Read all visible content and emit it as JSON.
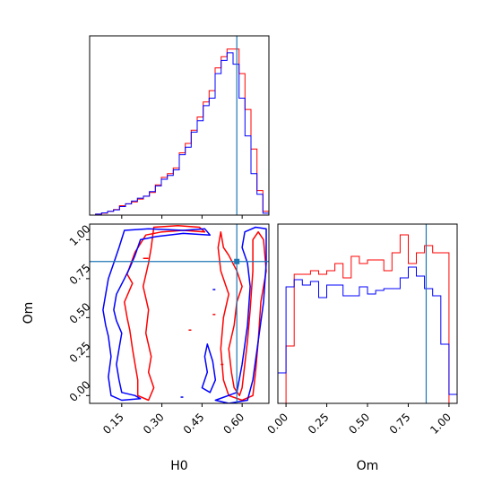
{
  "chart_data": {
    "type": "corner",
    "parameters": [
      "H0",
      "Om"
    ],
    "truth": {
      "H0": 0.58,
      "Om": 0.86
    },
    "colors": {
      "red": "#ff0000",
      "blue": "#0000ff",
      "truth": "#1f77b4"
    },
    "grid": false,
    "h0_marginal": {
      "xlim": [
        0.03,
        0.7
      ],
      "edges": [
        0.03,
        0.0523,
        0.0747,
        0.097,
        0.1193,
        0.1417,
        0.164,
        0.1863,
        0.2087,
        0.231,
        0.2533,
        0.2757,
        0.298,
        0.3203,
        0.3427,
        0.365,
        0.3873,
        0.4097,
        0.432,
        0.4543,
        0.4767,
        0.499,
        0.5213,
        0.5437,
        0.566,
        0.5883,
        0.6107,
        0.633,
        0.6553,
        0.6777,
        0.7
      ],
      "red": [
        0,
        0.005,
        0.01,
        0.02,
        0.03,
        0.05,
        0.06,
        0.07,
        0.085,
        0.1,
        0.12,
        0.16,
        0.2,
        0.22,
        0.25,
        0.33,
        0.38,
        0.45,
        0.52,
        0.6,
        0.66,
        0.78,
        0.84,
        0.88,
        0.88,
        0.75,
        0.56,
        0.35,
        0.13,
        0.02
      ],
      "blue": [
        0,
        0.005,
        0.012,
        0.02,
        0.028,
        0.045,
        0.06,
        0.075,
        0.09,
        0.1,
        0.125,
        0.155,
        0.19,
        0.21,
        0.24,
        0.32,
        0.36,
        0.44,
        0.5,
        0.58,
        0.62,
        0.75,
        0.82,
        0.86,
        0.8,
        0.62,
        0.42,
        0.22,
        0.11,
        0.01
      ]
    },
    "om_marginal": {
      "xlim": [
        -0.05,
        1.05
      ],
      "xticks": [
        "0.00",
        "0.25",
        "0.50",
        "0.75",
        "1.00"
      ],
      "edges": [
        -0.05,
        0.0,
        0.05,
        0.1,
        0.15,
        0.2,
        0.25,
        0.3,
        0.35,
        0.4,
        0.45,
        0.5,
        0.55,
        0.6,
        0.65,
        0.7,
        0.75,
        0.8,
        0.85,
        0.9,
        0.95,
        1.0,
        1.05
      ],
      "red": [
        0,
        0.32,
        0.72,
        0.72,
        0.74,
        0.72,
        0.74,
        0.78,
        0.7,
        0.82,
        0.78,
        0.8,
        0.8,
        0.74,
        0.84,
        0.94,
        0.78,
        0.84,
        0.88,
        0.84,
        0.84,
        0
      ],
      "blue": [
        0.17,
        0.65,
        0.69,
        0.66,
        0.68,
        0.59,
        0.66,
        0.66,
        0.6,
        0.6,
        0.65,
        0.61,
        0.63,
        0.64,
        0.64,
        0.7,
        0.76,
        0.71,
        0.64,
        0.6,
        0.33,
        0.05
      ]
    },
    "joint": {
      "xlabel": "H0",
      "ylabel": "Om",
      "xlim": [
        0.03,
        0.7
      ],
      "ylim": [
        -0.05,
        1.1
      ],
      "xticks": [
        "0.15",
        "0.30",
        "0.45",
        "0.60"
      ],
      "yticks": [
        "0.00",
        "0.25",
        "0.50",
        "0.75",
        "1.00"
      ],
      "contours": [
        {
          "color": "red",
          "points": [
            [
              0.27,
              1.08
            ],
            [
              0.36,
              1.09
            ],
            [
              0.44,
              1.08
            ],
            [
              0.46,
              1.05
            ],
            [
              0.38,
              1.06
            ],
            [
              0.3,
              1.05
            ],
            [
              0.24,
              1.03
            ],
            [
              0.2,
              0.92
            ],
            [
              0.17,
              0.78
            ],
            [
              0.19,
              0.72
            ],
            [
              0.16,
              0.6
            ],
            [
              0.17,
              0.5
            ],
            [
              0.18,
              0.42
            ],
            [
              0.19,
              0.3
            ],
            [
              0.2,
              0.2
            ],
            [
              0.21,
              0.1
            ],
            [
              0.21,
              0.0
            ],
            [
              0.25,
              -0.03
            ],
            [
              0.27,
              0.05
            ],
            [
              0.25,
              0.15
            ],
            [
              0.26,
              0.25
            ],
            [
              0.24,
              0.4
            ],
            [
              0.25,
              0.55
            ],
            [
              0.23,
              0.7
            ],
            [
              0.25,
              0.85
            ],
            [
              0.26,
              0.95
            ],
            [
              0.27,
              1.08
            ]
          ]
        },
        {
          "color": "red",
          "points": [
            [
              0.52,
              1.05
            ],
            [
              0.53,
              0.95
            ],
            [
              0.55,
              0.9
            ],
            [
              0.58,
              0.8
            ],
            [
              0.6,
              0.7
            ],
            [
              0.58,
              0.6
            ],
            [
              0.57,
              0.45
            ],
            [
              0.55,
              0.3
            ],
            [
              0.56,
              0.15
            ],
            [
              0.57,
              0.05
            ],
            [
              0.59,
              0.0
            ],
            [
              0.6,
              0.05
            ],
            [
              0.61,
              0.2
            ],
            [
              0.62,
              0.35
            ],
            [
              0.63,
              0.55
            ],
            [
              0.64,
              0.8
            ],
            [
              0.64,
              1.0
            ],
            [
              0.66,
              1.05
            ],
            [
              0.68,
              1.0
            ],
            [
              0.69,
              0.8
            ],
            [
              0.67,
              0.6
            ],
            [
              0.66,
              0.35
            ],
            [
              0.65,
              0.15
            ],
            [
              0.64,
              0.0
            ],
            [
              0.6,
              -0.03
            ],
            [
              0.55,
              0.0
            ],
            [
              0.53,
              0.1
            ],
            [
              0.52,
              0.3
            ],
            [
              0.53,
              0.5
            ],
            [
              0.55,
              0.65
            ],
            [
              0.52,
              0.8
            ],
            [
              0.51,
              0.95
            ],
            [
              0.52,
              1.05
            ]
          ]
        },
        {
          "color": "blue",
          "points": [
            [
              0.16,
              1.06
            ],
            [
              0.25,
              1.07
            ],
            [
              0.38,
              1.06
            ],
            [
              0.46,
              1.07
            ],
            [
              0.48,
              1.03
            ],
            [
              0.38,
              1.04
            ],
            [
              0.28,
              1.02
            ],
            [
              0.22,
              1.0
            ],
            [
              0.2,
              0.9
            ],
            [
              0.18,
              0.82
            ],
            [
              0.16,
              0.75
            ],
            [
              0.13,
              0.65
            ],
            [
              0.12,
              0.55
            ],
            [
              0.13,
              0.48
            ],
            [
              0.15,
              0.4
            ],
            [
              0.14,
              0.3
            ],
            [
              0.13,
              0.2
            ],
            [
              0.14,
              0.1
            ],
            [
              0.15,
              0.02
            ],
            [
              0.2,
              0.0
            ],
            [
              0.22,
              -0.02
            ],
            [
              0.15,
              -0.03
            ],
            [
              0.11,
              0.0
            ],
            [
              0.1,
              0.12
            ],
            [
              0.11,
              0.25
            ],
            [
              0.1,
              0.38
            ],
            [
              0.09,
              0.45
            ],
            [
              0.08,
              0.55
            ],
            [
              0.09,
              0.65
            ],
            [
              0.1,
              0.75
            ],
            [
              0.12,
              0.85
            ],
            [
              0.14,
              0.95
            ],
            [
              0.16,
              1.06
            ]
          ]
        },
        {
          "color": "blue",
          "points": [
            [
              0.5,
              -0.03
            ],
            [
              0.58,
              0.02
            ],
            [
              0.6,
              0.2
            ],
            [
              0.62,
              0.45
            ],
            [
              0.63,
              0.7
            ],
            [
              0.62,
              0.85
            ],
            [
              0.6,
              0.95
            ],
            [
              0.61,
              1.05
            ],
            [
              0.65,
              1.08
            ],
            [
              0.69,
              1.07
            ],
            [
              0.69,
              0.85
            ],
            [
              0.68,
              0.6
            ],
            [
              0.66,
              0.35
            ],
            [
              0.64,
              0.1
            ],
            [
              0.62,
              -0.03
            ],
            [
              0.55,
              -0.05
            ],
            [
              0.5,
              -0.03
            ]
          ]
        },
        {
          "color": "blue",
          "points": [
            [
              0.47,
              0.33
            ],
            [
              0.49,
              0.22
            ],
            [
              0.5,
              0.1
            ],
            [
              0.48,
              0.02
            ],
            [
              0.45,
              0.05
            ],
            [
              0.47,
              0.15
            ],
            [
              0.46,
              0.25
            ],
            [
              0.47,
              0.33
            ]
          ]
        }
      ],
      "small_marks": [
        {
          "color": "red",
          "x1": 0.23,
          "x2": 0.25,
          "y": 0.88
        },
        {
          "color": "red",
          "x1": 0.49,
          "x2": 0.5,
          "y": 0.52
        },
        {
          "color": "red",
          "x1": 0.52,
          "x2": 0.53,
          "y": 0.2
        },
        {
          "color": "red",
          "x1": 0.4,
          "x2": 0.41,
          "y": 0.42
        },
        {
          "color": "blue",
          "x1": 0.37,
          "x2": 0.38,
          "y": -0.01
        },
        {
          "color": "blue",
          "x1": 0.49,
          "x2": 0.5,
          "y": 0.68
        }
      ]
    }
  }
}
